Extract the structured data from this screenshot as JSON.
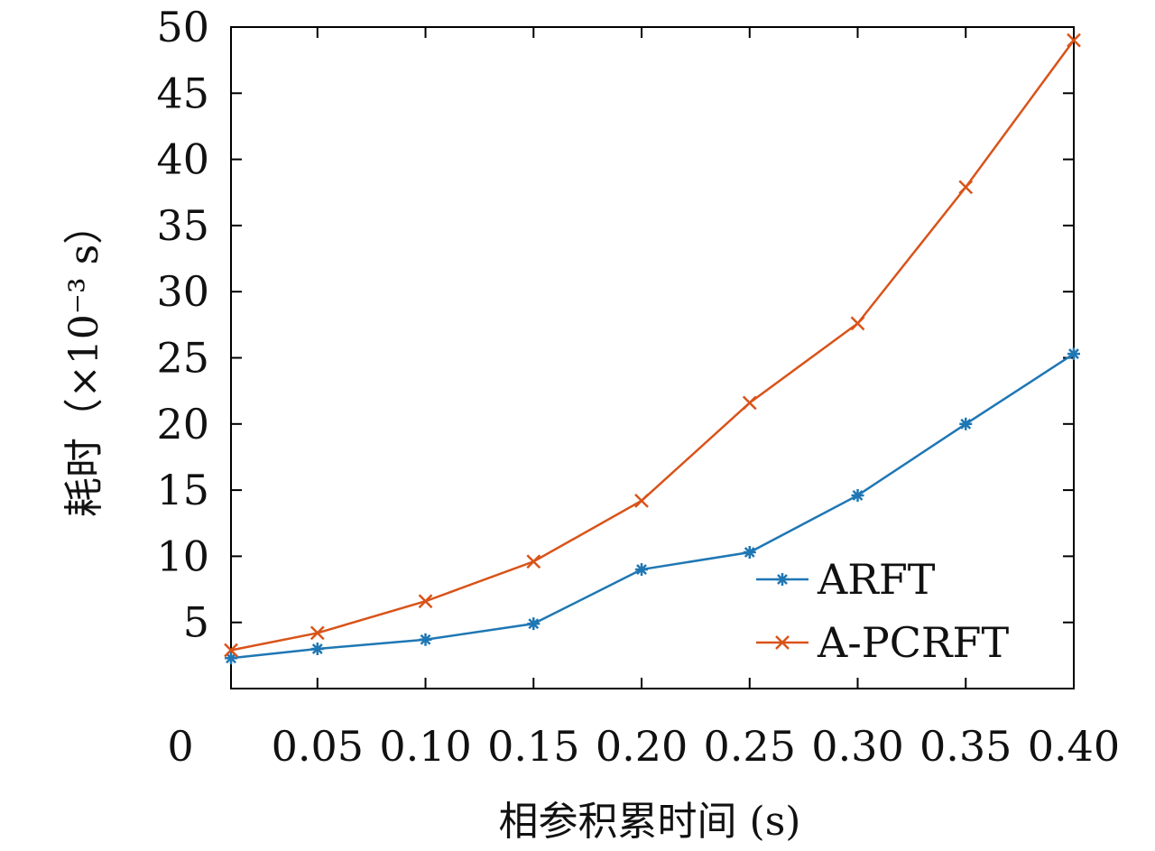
{
  "chart_data": {
    "type": "line",
    "xlabel": "相参积累时间 (s)",
    "ylabel": "耗时（×10⁻³ s）",
    "x_origin_label": "0",
    "xticks": [
      "0.05",
      "0.10",
      "0.15",
      "0.20",
      "0.25",
      "0.30",
      "0.35",
      "0.40"
    ],
    "yticks": [
      "5",
      "10",
      "15",
      "20",
      "25",
      "30",
      "35",
      "40",
      "45",
      "50"
    ],
    "xlim": [
      0.01,
      0.4
    ],
    "ylim": [
      0,
      50
    ],
    "legend_position": "bottom-right",
    "grid": false,
    "x": [
      0.01,
      0.05,
      0.1,
      0.15,
      0.2,
      0.25,
      0.3,
      0.35,
      0.4
    ],
    "series": [
      {
        "name": "ARFT",
        "color": "#1f77b4",
        "marker": "asterisk",
        "values": [
          2.3,
          3.0,
          3.7,
          4.9,
          9.0,
          10.3,
          14.6,
          20.0,
          25.3
        ]
      },
      {
        "name": "A-PCRFT",
        "color": "#d95319",
        "marker": "x",
        "values": [
          2.9,
          4.2,
          6.6,
          9.6,
          14.2,
          21.6,
          27.6,
          37.9,
          49.0
        ]
      }
    ]
  }
}
